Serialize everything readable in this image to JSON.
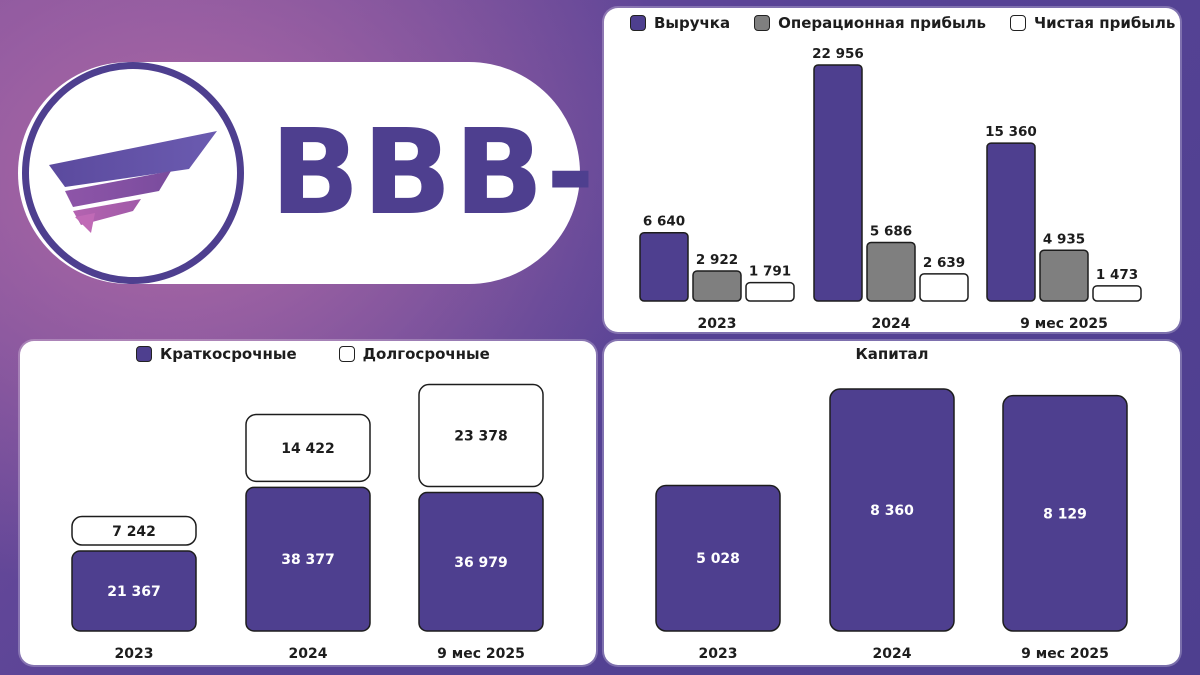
{
  "rating": "BBB-",
  "colors": {
    "purple": "#4e3f8f",
    "gray": "#7f7f7f",
    "white": "#ffffff"
  },
  "legend_income": [
    "Выручка",
    "Операционная прибыль",
    "Чистая прибыль"
  ],
  "legend_debt": [
    "Краткосрочные",
    "Долгосрочные"
  ],
  "capital_title": "Капитал",
  "chart_data": [
    {
      "type": "bar",
      "categories": [
        "2023",
        "2024",
        "9 мес 2025"
      ],
      "series": [
        {
          "name": "Выручка",
          "values": [
            6640,
            22956,
            15360
          ],
          "labels": [
            "6 640",
            "22 956",
            "15 360"
          ]
        },
        {
          "name": "Операционная прибыль",
          "values": [
            2922,
            5686,
            4935
          ],
          "labels": [
            "2 922",
            "5 686",
            "4 935"
          ]
        },
        {
          "name": "Чистая прибыль",
          "values": [
            1791,
            2639,
            1473
          ],
          "labels": [
            "1 791",
            "2 639",
            "1 473"
          ]
        }
      ]
    },
    {
      "type": "bar",
      "stacked": true,
      "categories": [
        "2023",
        "2024",
        "9 мес 2025"
      ],
      "series": [
        {
          "name": "Краткосрочные",
          "values": [
            21367,
            38377,
            36979
          ],
          "labels": [
            "21 367",
            "38 377",
            "36 979"
          ]
        },
        {
          "name": "Долгосрочные",
          "values": [
            7242,
            14422,
            23378
          ],
          "labels": [
            "7 242",
            "14 422",
            "23 378"
          ]
        }
      ]
    },
    {
      "type": "bar",
      "title": "Капитал",
      "categories": [
        "2023",
        "2024",
        "9 мес 2025"
      ],
      "values": [
        5028,
        8360,
        8129
      ],
      "labels": [
        "5 028",
        "8 360",
        "8 129"
      ]
    }
  ]
}
